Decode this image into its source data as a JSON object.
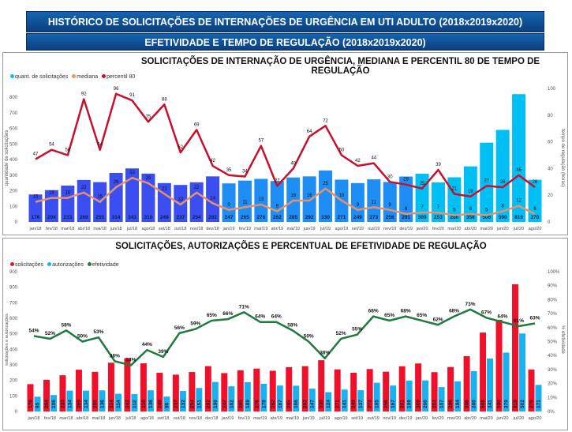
{
  "header": {
    "title": "HISTÓRICO DE SOLICITAÇÕES DE INTERNAÇÕES DE URGÊNCIA EM UTI ADULTO (2018x2019x2020)",
    "subtitle": "EFETIVIDADE E TEMPO DE REGULAÇÃO (2018x2019x2020)"
  },
  "chart_data": [
    {
      "type": "bar+line",
      "title": "SOLICITAÇÕES DE INTERNAÇÃO DE URGÊNCIA, MEDIANA E PERCENTIL 80 DE TEMPO DE REGULAÇÃO",
      "ylabel": "quantidade de solicitações",
      "y2label": "tempo de regulação (horas)",
      "ylim": [
        0,
        800
      ],
      "yticks": [
        0,
        100,
        200,
        300,
        400,
        500,
        600,
        700,
        800
      ],
      "y2lim": [
        0,
        100
      ],
      "y2ticks": [
        0,
        20,
        40,
        60,
        80,
        100
      ],
      "legend_position": "top-left",
      "colors": {
        "bars_2018": "#3b4ef2",
        "bars_2019": "#1e8ef5",
        "bars_2020": "#00bff5",
        "mediana": "#e8906a",
        "percentil80": "#c8102e"
      },
      "categories": [
        "jan/18",
        "fev/18",
        "mar/18",
        "abr/18",
        "mai/18",
        "jun/18",
        "jul/18",
        "ago/18",
        "set/18",
        "out/18",
        "nov/18",
        "dez/18",
        "jan/19",
        "fev/19",
        "mar/19",
        "abr/19",
        "mai/19",
        "jun/19",
        "jul/19",
        "ago/19",
        "set/19",
        "out/19",
        "nov/19",
        "dez/19",
        "jan/20",
        "fev/20",
        "mar/20",
        "abr/20",
        "mai/20",
        "jun/20",
        "jul/20",
        "ago/20"
      ],
      "series": [
        {
          "name": "quant. de solicitações",
          "type": "bar",
          "axis": "left",
          "values": [
            176,
            204,
            233,
            269,
            255,
            314,
            343,
            310,
            249,
            237,
            254,
            292,
            247,
            265,
            276,
            262,
            285,
            292,
            330,
            271,
            249,
            273,
            256,
            291,
            309,
            253,
            286,
            356,
            508,
            590,
            819,
            270
          ]
        },
        {
          "name": "mediana",
          "type": "line",
          "axis": "right",
          "values": [
            15,
            18,
            18,
            22,
            15,
            26,
            33,
            29,
            21,
            13,
            22,
            14,
            9,
            11,
            13,
            8,
            16,
            16,
            25,
            16,
            9,
            11,
            9,
            6,
            7,
            7,
            5,
            6,
            5,
            8,
            12,
            6
          ]
        },
        {
          "name": "percentil 80",
          "type": "line",
          "axis": "right",
          "values": [
            47,
            54,
            50,
            92,
            54,
            96,
            91,
            75,
            88,
            52,
            69,
            42,
            35,
            34,
            57,
            27,
            40,
            64,
            72,
            50,
            42,
            44,
            30,
            28,
            25,
            39,
            21,
            19,
            27,
            26,
            35,
            26
          ]
        }
      ]
    },
    {
      "type": "bar+line",
      "title": "SOLICITAÇÕES, AUTORIZAÇÕES E PERCENTUAL DE EFETIVIDADE DE REGULAÇÃO",
      "ylabel": "solicitações e autorizações",
      "y2label": "% efetividade",
      "ylim": [
        0,
        900
      ],
      "yticks": [
        0,
        100,
        200,
        300,
        400,
        500,
        600,
        700,
        800,
        900
      ],
      "y2lim": [
        0,
        100
      ],
      "y2ticks": [
        "0%",
        "10%",
        "20%",
        "30%",
        "40%",
        "50%",
        "60%",
        "70%",
        "80%",
        "90%",
        "100%"
      ],
      "legend_position": "top-left",
      "colors": {
        "solicitacoes": "#f0102a",
        "autorizacoes": "#19b2ef",
        "efetividade": "#1f7a3f"
      },
      "categories": [
        "jan/18",
        "fev/18",
        "mar/18",
        "abr/18",
        "mai/18",
        "jun/18",
        "jul/18",
        "ago/18",
        "set/18",
        "out/18",
        "nov/18",
        "dec/18",
        "jan/19",
        "fev/19",
        "mar/19",
        "abr/19",
        "mai/19",
        "jun/19",
        "jul/19",
        "ago/19",
        "set/19",
        "out/19",
        "nov/19",
        "dec/19",
        "jan/20",
        "fev/20",
        "mar/20",
        "abr/20",
        "mai/20",
        "jun/20",
        "jul/20",
        "ago/20"
      ],
      "series": [
        {
          "name": "solicitações",
          "type": "bar",
          "axis": "left",
          "values": [
            176,
            204,
            233,
            269,
            255,
            314,
            343,
            310,
            249,
            237,
            254,
            292,
            247,
            265,
            276,
            262,
            285,
            292,
            330,
            271,
            249,
            273,
            256,
            291,
            309,
            253,
            286,
            356,
            508,
            590,
            819,
            270
          ]
        },
        {
          "name": "autorizações",
          "type": "bar",
          "axis": "left",
          "values": [
            95,
            106,
            134,
            134,
            136,
            114,
            112,
            136,
            96,
            132,
            151,
            190,
            162,
            189,
            178,
            167,
            166,
            147,
            124,
            141,
            137,
            185,
            167,
            199,
            200,
            157,
            194,
            260,
            341,
            379,
            502,
            171
          ]
        },
        {
          "name": "efetividade",
          "type": "line",
          "axis": "right",
          "values": [
            54,
            52,
            58,
            50,
            53,
            36,
            33,
            44,
            39,
            56,
            59,
            65,
            66,
            71,
            64,
            64,
            58,
            50,
            38,
            52,
            55,
            68,
            65,
            68,
            65,
            62,
            68,
            73,
            67,
            64,
            61,
            63
          ]
        }
      ]
    }
  ]
}
